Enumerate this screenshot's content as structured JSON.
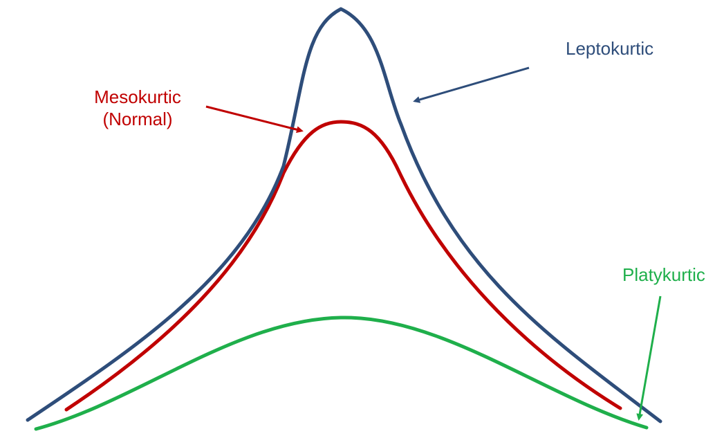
{
  "labels": {
    "leptokurtic": "Leptokurtic",
    "mesokurtic_line1": "Mesokurtic",
    "mesokurtic_line2": "(Normal)",
    "platykurtic": "Platykurtic"
  },
  "colors": {
    "leptokurtic": "#2e4d7a",
    "mesokurtic": "#c00000",
    "platykurtic": "#1faf4b",
    "background": "#ffffff"
  }
}
